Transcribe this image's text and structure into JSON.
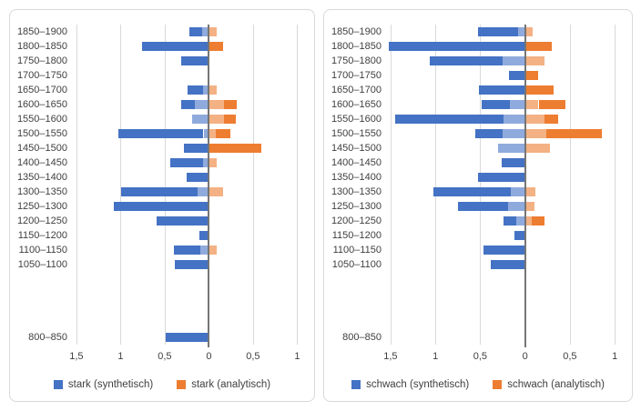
{
  "colors": {
    "syn_dark": "#4472C4",
    "syn_light": "#8FAADC",
    "ana_dark": "#ED7D31",
    "ana_light": "#F4B183",
    "grid": "#D9D9D9",
    "axis": "#757575",
    "panel_border": "#D9D9D9",
    "text": "#404040"
  },
  "value_range": {
    "min": -1.55,
    "max": 1.12
  },
  "axis_ticks": [
    {
      "v": -1.5,
      "label": "1,5"
    },
    {
      "v": -1.0,
      "label": "1"
    },
    {
      "v": -0.5,
      "label": "0,5"
    },
    {
      "v": 0.0,
      "label": "0"
    },
    {
      "v": 0.5,
      "label": "0,5"
    },
    {
      "v": 1.0,
      "label": "1"
    }
  ],
  "chart_data": [
    {
      "type": "bar",
      "orientation": "horizontal-diverging",
      "title": "",
      "legend": [
        {
          "name": "stark (synthetisch)",
          "color_key": "syn_dark"
        },
        {
          "name": "stark (analytisch)",
          "color_key": "ana_dark"
        }
      ],
      "rows": [
        {
          "label": "1850–1900",
          "syn_dark": 0.14,
          "syn_light": 0.08,
          "ana_light": 0.09,
          "ana_dark": 0
        },
        {
          "label": "1800–1850",
          "syn_dark": 0.76,
          "syn_light": 0,
          "ana_light": 0,
          "ana_dark": 0.16
        },
        {
          "label": "1750–1800",
          "syn_dark": 0.31,
          "syn_light": 0,
          "ana_light": 0,
          "ana_dark": 0
        },
        {
          "label": "1700–1750",
          "syn_dark": 0,
          "syn_light": 0,
          "ana_light": 0,
          "ana_dark": 0
        },
        {
          "label": "1650–1700",
          "syn_dark": 0.17,
          "syn_light": 0.07,
          "ana_light": 0.09,
          "ana_dark": 0
        },
        {
          "label": "1600–1650",
          "syn_dark": 0.15,
          "syn_light": 0.16,
          "ana_light": 0.17,
          "ana_dark": 0.15
        },
        {
          "label": "1550–1600",
          "syn_dark": 0,
          "syn_light": 0.19,
          "ana_light": 0.17,
          "ana_dark": 0.14
        },
        {
          "label": "1500–1550",
          "syn_dark": 0.96,
          "syn_light": 0.06,
          "ana_light": 0.08,
          "ana_dark": 0.16
        },
        {
          "label": "1450–1500",
          "syn_dark": 0.28,
          "syn_light": 0,
          "ana_light": 0,
          "ana_dark": 0.59
        },
        {
          "label": "1400–1450",
          "syn_dark": 0.37,
          "syn_light": 0.07,
          "ana_light": 0.09,
          "ana_dark": 0
        },
        {
          "label": "1350–1400",
          "syn_dark": 0.25,
          "syn_light": 0,
          "ana_light": 0,
          "ana_dark": 0
        },
        {
          "label": "1300–1350",
          "syn_dark": 0.86,
          "syn_light": 0.13,
          "ana_light": 0.16,
          "ana_dark": 0
        },
        {
          "label": "1250–1300",
          "syn_dark": 1.08,
          "syn_light": 0,
          "ana_light": 0,
          "ana_dark": 0
        },
        {
          "label": "1200–1250",
          "syn_dark": 0.59,
          "syn_light": 0,
          "ana_light": 0,
          "ana_dark": 0
        },
        {
          "label": "1150–1200",
          "syn_dark": 0.11,
          "syn_light": 0,
          "ana_light": 0,
          "ana_dark": 0
        },
        {
          "label": "1100–1150",
          "syn_dark": 0.3,
          "syn_light": 0.1,
          "ana_light": 0.09,
          "ana_dark": 0
        },
        {
          "label": "1050–1100",
          "syn_dark": 0.39,
          "syn_light": 0,
          "ana_light": 0,
          "ana_dark": 0
        },
        {
          "label": "",
          "syn_dark": 0,
          "syn_light": 0,
          "ana_light": 0,
          "ana_dark": 0
        },
        {
          "label": "",
          "syn_dark": 0,
          "syn_light": 0,
          "ana_light": 0,
          "ana_dark": 0
        },
        {
          "label": "",
          "syn_dark": 0,
          "syn_light": 0,
          "ana_light": 0,
          "ana_dark": 0
        },
        {
          "label": "",
          "syn_dark": 0,
          "syn_light": 0,
          "ana_light": 0,
          "ana_dark": 0
        },
        {
          "label": "800–850",
          "syn_dark": 0.49,
          "syn_light": 0,
          "ana_light": 0,
          "ana_dark": 0
        }
      ]
    },
    {
      "type": "bar",
      "orientation": "horizontal-diverging",
      "title": "",
      "legend": [
        {
          "name": "schwach (synthetisch)",
          "color_key": "syn_dark"
        },
        {
          "name": "schwach (analytisch)",
          "color_key": "ana_dark"
        }
      ],
      "rows": [
        {
          "label": "1850–1900",
          "syn_dark": 0.45,
          "syn_light": 0.08,
          "ana_light": 0.08,
          "ana_dark": 0
        },
        {
          "label": "1800–1850",
          "syn_dark": 1.52,
          "syn_light": 0,
          "ana_light": 0,
          "ana_dark": 0.3
        },
        {
          "label": "1750–1800",
          "syn_dark": 0.81,
          "syn_light": 0.25,
          "ana_light": 0.22,
          "ana_dark": 0
        },
        {
          "label": "1700–1750",
          "syn_dark": 0.18,
          "syn_light": 0,
          "ana_light": 0,
          "ana_dark": 0.15
        },
        {
          "label": "1650–1700",
          "syn_dark": 0.51,
          "syn_light": 0,
          "ana_light": 0,
          "ana_dark": 0.32
        },
        {
          "label": "1600–1650",
          "syn_dark": 0.31,
          "syn_light": 0.17,
          "ana_light": 0.15,
          "ana_dark": 0.3
        },
        {
          "label": "1550–1600",
          "syn_dark": 1.21,
          "syn_light": 0.24,
          "ana_light": 0.22,
          "ana_dark": 0.15
        },
        {
          "label": "1500–1550",
          "syn_dark": 0.31,
          "syn_light": 0.25,
          "ana_light": 0.24,
          "ana_dark": 0.62
        },
        {
          "label": "1450–1500",
          "syn_dark": 0,
          "syn_light": 0.3,
          "ana_light": 0.28,
          "ana_dark": 0
        },
        {
          "label": "1400–1450",
          "syn_dark": 0.26,
          "syn_light": 0,
          "ana_light": 0,
          "ana_dark": 0
        },
        {
          "label": "1350–1400",
          "syn_dark": 0.53,
          "syn_light": 0,
          "ana_light": 0,
          "ana_dark": 0
        },
        {
          "label": "1300–1350",
          "syn_dark": 0.86,
          "syn_light": 0.16,
          "ana_light": 0.12,
          "ana_dark": 0
        },
        {
          "label": "1250–1300",
          "syn_dark": 0.56,
          "syn_light": 0.19,
          "ana_light": 0.11,
          "ana_dark": 0
        },
        {
          "label": "1200–1250",
          "syn_dark": 0.14,
          "syn_light": 0.1,
          "ana_light": 0.07,
          "ana_dark": 0.15
        },
        {
          "label": "1150–1200",
          "syn_dark": 0.12,
          "syn_light": 0,
          "ana_light": 0,
          "ana_dark": 0
        },
        {
          "label": "1100–1150",
          "syn_dark": 0.46,
          "syn_light": 0,
          "ana_light": 0,
          "ana_dark": 0
        },
        {
          "label": "1050–1100",
          "syn_dark": 0.38,
          "syn_light": 0,
          "ana_light": 0,
          "ana_dark": 0
        },
        {
          "label": "",
          "syn_dark": 0,
          "syn_light": 0,
          "ana_light": 0,
          "ana_dark": 0
        },
        {
          "label": "",
          "syn_dark": 0,
          "syn_light": 0,
          "ana_light": 0,
          "ana_dark": 0
        },
        {
          "label": "",
          "syn_dark": 0,
          "syn_light": 0,
          "ana_light": 0,
          "ana_dark": 0
        },
        {
          "label": "",
          "syn_dark": 0,
          "syn_light": 0,
          "ana_light": 0,
          "ana_dark": 0
        },
        {
          "label": "800–850",
          "syn_dark": 0,
          "syn_light": 0,
          "ana_light": 0,
          "ana_dark": 0
        }
      ]
    }
  ]
}
